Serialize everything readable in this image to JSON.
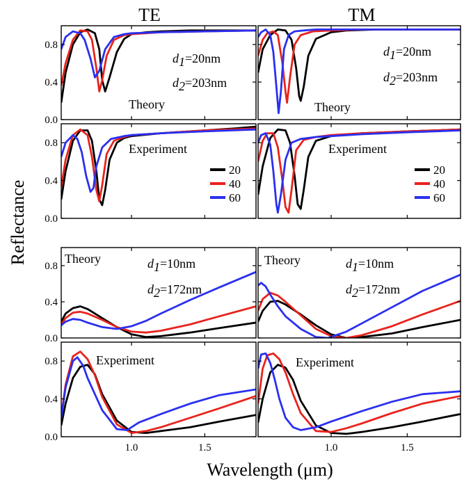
{
  "columns": [
    "TE",
    "TM"
  ],
  "ylabel": "Reflectance",
  "xlabel": "Wavelength (μm)",
  "xlim": [
    0.52,
    1.85
  ],
  "x_ticks": [
    1.0,
    1.5
  ],
  "x_tick_labels": [
    "1.0",
    "1.5"
  ],
  "y_ticks": [
    0.0,
    0.4,
    0.8
  ],
  "y_tick_labels": [
    "0.0",
    "0.4",
    "0.8"
  ],
  "colors": {
    "20": "#000000",
    "40": "#e8231c",
    "60": "#2a2ff0"
  },
  "legend": {
    "labels": [
      "20",
      "40",
      "60"
    ],
    "placement": "right, below the Experiment label"
  },
  "annotations": {
    "theory": "Theory",
    "experiment": "Experiment",
    "d1_label": "d",
    "d1_sub": "1",
    "d2_label": "d",
    "d2_sub": "2",
    "d1_20": "=20nm",
    "d2_203": "=203nm",
    "d1_10": "=10nm",
    "d2_172": "=172nm"
  },
  "chart_data": [
    {
      "type": "line",
      "panel": "TE, d1=20nm, d2=203nm",
      "kind": "theory",
      "ylim": [
        0,
        1.0
      ],
      "series": [
        {
          "name": "20",
          "color": "#000000",
          "x": [
            0.52,
            0.55,
            0.6,
            0.65,
            0.7,
            0.75,
            0.78,
            0.8,
            0.82,
            0.85,
            0.9,
            0.95,
            1.0,
            1.1,
            1.2,
            1.4,
            1.6,
            1.85
          ],
          "y": [
            0.18,
            0.5,
            0.8,
            0.93,
            0.96,
            0.92,
            0.75,
            0.42,
            0.3,
            0.45,
            0.72,
            0.86,
            0.91,
            0.93,
            0.94,
            0.95,
            0.95,
            0.95
          ]
        },
        {
          "name": "40",
          "color": "#e8231c",
          "x": [
            0.52,
            0.55,
            0.6,
            0.65,
            0.7,
            0.73,
            0.76,
            0.78,
            0.8,
            0.83,
            0.88,
            0.95,
            1.0,
            1.2,
            1.5,
            1.85
          ],
          "y": [
            0.36,
            0.6,
            0.85,
            0.95,
            0.94,
            0.85,
            0.55,
            0.3,
            0.42,
            0.68,
            0.85,
            0.9,
            0.91,
            0.93,
            0.94,
            0.95
          ]
        },
        {
          "name": "60",
          "color": "#2a2ff0",
          "x": [
            0.52,
            0.55,
            0.6,
            0.65,
            0.68,
            0.72,
            0.75,
            0.78,
            0.82,
            0.88,
            0.95,
            1.0,
            1.2,
            1.5,
            1.85
          ],
          "y": [
            0.75,
            0.88,
            0.94,
            0.92,
            0.85,
            0.65,
            0.45,
            0.52,
            0.75,
            0.88,
            0.91,
            0.92,
            0.93,
            0.94,
            0.95
          ]
        }
      ]
    },
    {
      "type": "line",
      "panel": "TM, d1=20nm, d2=203nm",
      "kind": "theory",
      "ylim": [
        0,
        1.0
      ],
      "series": [
        {
          "name": "20",
          "color": "#000000",
          "x": [
            0.52,
            0.55,
            0.6,
            0.65,
            0.7,
            0.74,
            0.77,
            0.79,
            0.8,
            0.82,
            0.85,
            0.9,
            1.0,
            1.1,
            1.3,
            1.6,
            1.85
          ],
          "y": [
            0.5,
            0.75,
            0.9,
            0.96,
            0.95,
            0.85,
            0.55,
            0.25,
            0.2,
            0.35,
            0.68,
            0.86,
            0.93,
            0.95,
            0.96,
            0.96,
            0.96
          ]
        },
        {
          "name": "40",
          "color": "#e8231c",
          "x": [
            0.52,
            0.55,
            0.58,
            0.62,
            0.65,
            0.68,
            0.7,
            0.71,
            0.73,
            0.76,
            0.8,
            0.88,
            1.0,
            1.2,
            1.5,
            1.85
          ],
          "y": [
            0.68,
            0.85,
            0.92,
            0.94,
            0.9,
            0.6,
            0.3,
            0.18,
            0.45,
            0.8,
            0.9,
            0.94,
            0.95,
            0.96,
            0.96,
            0.96
          ]
        },
        {
          "name": "60",
          "color": "#2a2ff0",
          "x": [
            0.52,
            0.54,
            0.57,
            0.6,
            0.62,
            0.64,
            0.655,
            0.67,
            0.69,
            0.72,
            0.76,
            0.82,
            0.9,
            1.0,
            1.2,
            1.5,
            1.85
          ],
          "y": [
            0.88,
            0.93,
            0.96,
            0.9,
            0.72,
            0.35,
            0.07,
            0.3,
            0.75,
            0.9,
            0.94,
            0.95,
            0.96,
            0.96,
            0.96,
            0.96,
            0.96
          ]
        }
      ]
    },
    {
      "type": "line",
      "panel": "TE",
      "kind": "experiment",
      "ylim": [
        0,
        1.0
      ],
      "series": [
        {
          "name": "20",
          "color": "#000000",
          "x": [
            0.52,
            0.55,
            0.6,
            0.65,
            0.7,
            0.73,
            0.76,
            0.78,
            0.8,
            0.82,
            0.85,
            0.9,
            0.95,
            1.0,
            1.2,
            1.5,
            1.7,
            1.85
          ],
          "y": [
            0.2,
            0.5,
            0.82,
            0.93,
            0.93,
            0.82,
            0.5,
            0.2,
            0.14,
            0.3,
            0.62,
            0.8,
            0.85,
            0.87,
            0.9,
            0.93,
            0.95,
            0.97
          ]
        },
        {
          "name": "40",
          "color": "#e8231c",
          "x": [
            0.52,
            0.55,
            0.6,
            0.65,
            0.7,
            0.73,
            0.76,
            0.78,
            0.8,
            0.83,
            0.88,
            0.95,
            1.0,
            1.2,
            1.5,
            1.85
          ],
          "y": [
            0.33,
            0.62,
            0.88,
            0.94,
            0.88,
            0.65,
            0.3,
            0.18,
            0.35,
            0.68,
            0.82,
            0.86,
            0.88,
            0.9,
            0.93,
            0.95
          ]
        },
        {
          "name": "60",
          "color": "#2a2ff0",
          "x": [
            0.52,
            0.55,
            0.6,
            0.63,
            0.66,
            0.69,
            0.72,
            0.74,
            0.76,
            0.8,
            0.86,
            0.95,
            1.0,
            1.2,
            1.5,
            1.85
          ],
          "y": [
            0.65,
            0.8,
            0.88,
            0.84,
            0.7,
            0.45,
            0.28,
            0.32,
            0.55,
            0.75,
            0.84,
            0.87,
            0.88,
            0.9,
            0.92,
            0.94
          ]
        }
      ]
    },
    {
      "type": "line",
      "panel": "TM",
      "kind": "experiment",
      "ylim": [
        0,
        1.0
      ],
      "series": [
        {
          "name": "20",
          "color": "#000000",
          "x": [
            0.52,
            0.55,
            0.6,
            0.65,
            0.7,
            0.73,
            0.76,
            0.78,
            0.8,
            0.82,
            0.85,
            0.9,
            1.0,
            1.2,
            1.5,
            1.85
          ],
          "y": [
            0.25,
            0.55,
            0.85,
            0.94,
            0.93,
            0.8,
            0.45,
            0.15,
            0.1,
            0.3,
            0.65,
            0.82,
            0.87,
            0.9,
            0.92,
            0.94
          ]
        },
        {
          "name": "40",
          "color": "#e8231c",
          "x": [
            0.52,
            0.55,
            0.58,
            0.62,
            0.65,
            0.68,
            0.7,
            0.72,
            0.74,
            0.77,
            0.82,
            0.9,
            1.0,
            1.2,
            1.5,
            1.85
          ],
          "y": [
            0.6,
            0.82,
            0.9,
            0.9,
            0.75,
            0.4,
            0.12,
            0.06,
            0.3,
            0.72,
            0.83,
            0.86,
            0.88,
            0.9,
            0.92,
            0.94
          ]
        },
        {
          "name": "60",
          "color": "#2a2ff0",
          "x": [
            0.52,
            0.54,
            0.57,
            0.6,
            0.62,
            0.64,
            0.65,
            0.67,
            0.7,
            0.74,
            0.8,
            0.9,
            1.0,
            1.2,
            1.5,
            1.85
          ],
          "y": [
            0.8,
            0.88,
            0.9,
            0.78,
            0.5,
            0.15,
            0.06,
            0.25,
            0.62,
            0.8,
            0.84,
            0.86,
            0.87,
            0.89,
            0.91,
            0.93
          ]
        }
      ]
    },
    {
      "type": "line",
      "panel": "TE, d1=10nm, d2=172nm",
      "kind": "theory",
      "ylim": [
        0,
        1.0
      ],
      "series": [
        {
          "name": "20",
          "color": "#000000",
          "x": [
            0.52,
            0.55,
            0.6,
            0.65,
            0.7,
            0.8,
            0.9,
            1.0,
            1.1,
            1.2,
            1.4,
            1.6,
            1.85
          ],
          "y": [
            0.18,
            0.27,
            0.33,
            0.35,
            0.32,
            0.22,
            0.12,
            0.04,
            0.01,
            0.02,
            0.06,
            0.11,
            0.17
          ]
        },
        {
          "name": "40",
          "color": "#e8231c",
          "x": [
            0.52,
            0.55,
            0.6,
            0.65,
            0.7,
            0.8,
            0.9,
            1.0,
            1.1,
            1.2,
            1.4,
            1.6,
            1.85
          ],
          "y": [
            0.15,
            0.22,
            0.28,
            0.29,
            0.27,
            0.2,
            0.12,
            0.07,
            0.06,
            0.08,
            0.15,
            0.24,
            0.35
          ]
        },
        {
          "name": "60",
          "color": "#2a2ff0",
          "x": [
            0.52,
            0.55,
            0.6,
            0.65,
            0.7,
            0.8,
            0.9,
            1.0,
            1.1,
            1.2,
            1.4,
            1.6,
            1.85
          ],
          "y": [
            0.14,
            0.18,
            0.21,
            0.2,
            0.17,
            0.12,
            0.1,
            0.13,
            0.19,
            0.27,
            0.42,
            0.56,
            0.73
          ]
        }
      ]
    },
    {
      "type": "line",
      "panel": "TM, d1=10nm, d2=172nm",
      "kind": "theory",
      "ylim": [
        0,
        1.0
      ],
      "series": [
        {
          "name": "20",
          "color": "#000000",
          "x": [
            0.52,
            0.55,
            0.6,
            0.65,
            0.7,
            0.8,
            0.9,
            1.0,
            1.1,
            1.2,
            1.4,
            1.6,
            1.85
          ],
          "y": [
            0.18,
            0.3,
            0.4,
            0.41,
            0.37,
            0.26,
            0.14,
            0.04,
            0.0,
            0.01,
            0.05,
            0.12,
            0.2
          ]
        },
        {
          "name": "40",
          "color": "#e8231c",
          "x": [
            0.52,
            0.55,
            0.6,
            0.65,
            0.7,
            0.8,
            0.9,
            1.0,
            1.1,
            1.2,
            1.4,
            1.6,
            1.85
          ],
          "y": [
            0.3,
            0.43,
            0.5,
            0.47,
            0.4,
            0.25,
            0.1,
            0.02,
            0.0,
            0.03,
            0.13,
            0.26,
            0.41
          ]
        },
        {
          "name": "60",
          "color": "#2a2ff0",
          "x": [
            0.52,
            0.54,
            0.57,
            0.6,
            0.65,
            0.7,
            0.8,
            0.9,
            0.98,
            1.1,
            1.2,
            1.4,
            1.6,
            1.85
          ],
          "y": [
            0.58,
            0.61,
            0.57,
            0.48,
            0.35,
            0.24,
            0.1,
            0.01,
            0.0,
            0.07,
            0.16,
            0.34,
            0.52,
            0.7
          ]
        }
      ]
    },
    {
      "type": "line",
      "panel": "TE",
      "kind": "experiment",
      "ylim": [
        0,
        1.0
      ],
      "series": [
        {
          "name": "20",
          "color": "#000000",
          "x": [
            0.52,
            0.55,
            0.6,
            0.65,
            0.7,
            0.75,
            0.8,
            0.9,
            1.0,
            1.1,
            1.2,
            1.4,
            1.6,
            1.85
          ],
          "y": [
            0.12,
            0.35,
            0.62,
            0.74,
            0.76,
            0.66,
            0.45,
            0.17,
            0.05,
            0.04,
            0.06,
            0.1,
            0.16,
            0.23
          ]
        },
        {
          "name": "40",
          "color": "#e8231c",
          "x": [
            0.52,
            0.55,
            0.6,
            0.65,
            0.7,
            0.75,
            0.8,
            0.9,
            1.0,
            1.1,
            1.2,
            1.4,
            1.6,
            1.85
          ],
          "y": [
            0.22,
            0.55,
            0.85,
            0.9,
            0.82,
            0.65,
            0.42,
            0.13,
            0.04,
            0.06,
            0.1,
            0.2,
            0.3,
            0.43
          ]
        },
        {
          "name": "60",
          "color": "#2a2ff0",
          "x": [
            0.52,
            0.55,
            0.6,
            0.63,
            0.67,
            0.7,
            0.75,
            0.8,
            0.9,
            0.97,
            1.05,
            1.2,
            1.4,
            1.6,
            1.85
          ],
          "y": [
            0.2,
            0.52,
            0.8,
            0.84,
            0.75,
            0.62,
            0.45,
            0.28,
            0.08,
            0.07,
            0.15,
            0.24,
            0.35,
            0.44,
            0.5
          ]
        }
      ]
    },
    {
      "type": "line",
      "panel": "TM",
      "kind": "experiment",
      "ylim": [
        0,
        1.0
      ],
      "series": [
        {
          "name": "20",
          "color": "#000000",
          "x": [
            0.52,
            0.55,
            0.6,
            0.65,
            0.7,
            0.75,
            0.8,
            0.9,
            1.0,
            1.1,
            1.2,
            1.4,
            1.6,
            1.85
          ],
          "y": [
            0.15,
            0.4,
            0.68,
            0.76,
            0.73,
            0.6,
            0.38,
            0.12,
            0.04,
            0.03,
            0.05,
            0.1,
            0.16,
            0.24
          ]
        },
        {
          "name": "40",
          "color": "#e8231c",
          "x": [
            0.52,
            0.55,
            0.58,
            0.62,
            0.66,
            0.7,
            0.75,
            0.8,
            0.9,
            1.0,
            1.1,
            1.2,
            1.4,
            1.6,
            1.85
          ],
          "y": [
            0.35,
            0.72,
            0.86,
            0.88,
            0.82,
            0.68,
            0.45,
            0.25,
            0.06,
            0.05,
            0.09,
            0.14,
            0.25,
            0.35,
            0.43
          ]
        },
        {
          "name": "60",
          "color": "#2a2ff0",
          "x": [
            0.52,
            0.54,
            0.57,
            0.6,
            0.63,
            0.66,
            0.7,
            0.75,
            0.8,
            0.9,
            1.0,
            1.2,
            1.4,
            1.6,
            1.85
          ],
          "y": [
            0.72,
            0.87,
            0.88,
            0.78,
            0.6,
            0.4,
            0.2,
            0.1,
            0.07,
            0.1,
            0.16,
            0.27,
            0.37,
            0.45,
            0.48
          ]
        }
      ]
    }
  ]
}
